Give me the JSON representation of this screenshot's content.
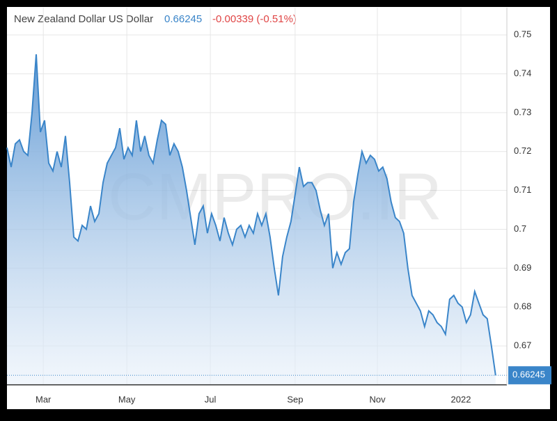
{
  "chart_data": {
    "type": "area",
    "title": "New Zealand Dollar US Dollar",
    "price": "0.66245",
    "change": "-0.00339 (-0.51%)",
    "watermark": "CMPRO.IR",
    "color": "#3a85c9",
    "values": [
      0.721,
      0.716,
      0.722,
      0.723,
      0.72,
      0.719,
      0.73,
      0.745,
      0.725,
      0.728,
      0.717,
      0.715,
      0.72,
      0.716,
      0.724,
      0.712,
      0.698,
      0.697,
      0.701,
      0.7,
      0.706,
      0.702,
      0.704,
      0.712,
      0.717,
      0.719,
      0.721,
      0.726,
      0.718,
      0.721,
      0.719,
      0.728,
      0.72,
      0.724,
      0.719,
      0.717,
      0.723,
      0.728,
      0.727,
      0.719,
      0.722,
      0.72,
      0.716,
      0.71,
      0.703,
      0.696,
      0.704,
      0.706,
      0.699,
      0.704,
      0.701,
      0.697,
      0.703,
      0.699,
      0.696,
      0.7,
      0.701,
      0.698,
      0.701,
      0.699,
      0.704,
      0.701,
      0.704,
      0.698,
      0.69,
      0.683,
      0.693,
      0.698,
      0.702,
      0.709,
      0.716,
      0.711,
      0.712,
      0.712,
      0.71,
      0.705,
      0.701,
      0.704,
      0.69,
      0.694,
      0.691,
      0.694,
      0.695,
      0.707,
      0.714,
      0.72,
      0.717,
      0.719,
      0.718,
      0.715,
      0.716,
      0.713,
      0.707,
      0.703,
      0.702,
      0.699,
      0.69,
      0.683,
      0.681,
      0.679,
      0.675,
      0.679,
      0.678,
      0.676,
      0.675,
      0.673,
      0.682,
      0.683,
      0.681,
      0.68,
      0.676,
      0.678,
      0.684,
      0.681,
      0.678,
      0.677,
      0.67,
      0.66245
    ],
    "xlim": [
      0,
      119.7
    ],
    "xticks": [
      {
        "value": 8.7,
        "label": "Mar"
      },
      {
        "value": 28.7,
        "label": "May"
      },
      {
        "value": 48.7,
        "label": "Jul"
      },
      {
        "value": 69,
        "label": "Sep"
      },
      {
        "value": 88.7,
        "label": "Nov"
      },
      {
        "value": 108.7,
        "label": "2022"
      }
    ],
    "ylim": [
      0.66,
      0.757
    ],
    "yticks": [
      0.67,
      0.68,
      0.69,
      0.7,
      0.71,
      0.72,
      0.73,
      0.74,
      0.75
    ],
    "grid": true
  }
}
